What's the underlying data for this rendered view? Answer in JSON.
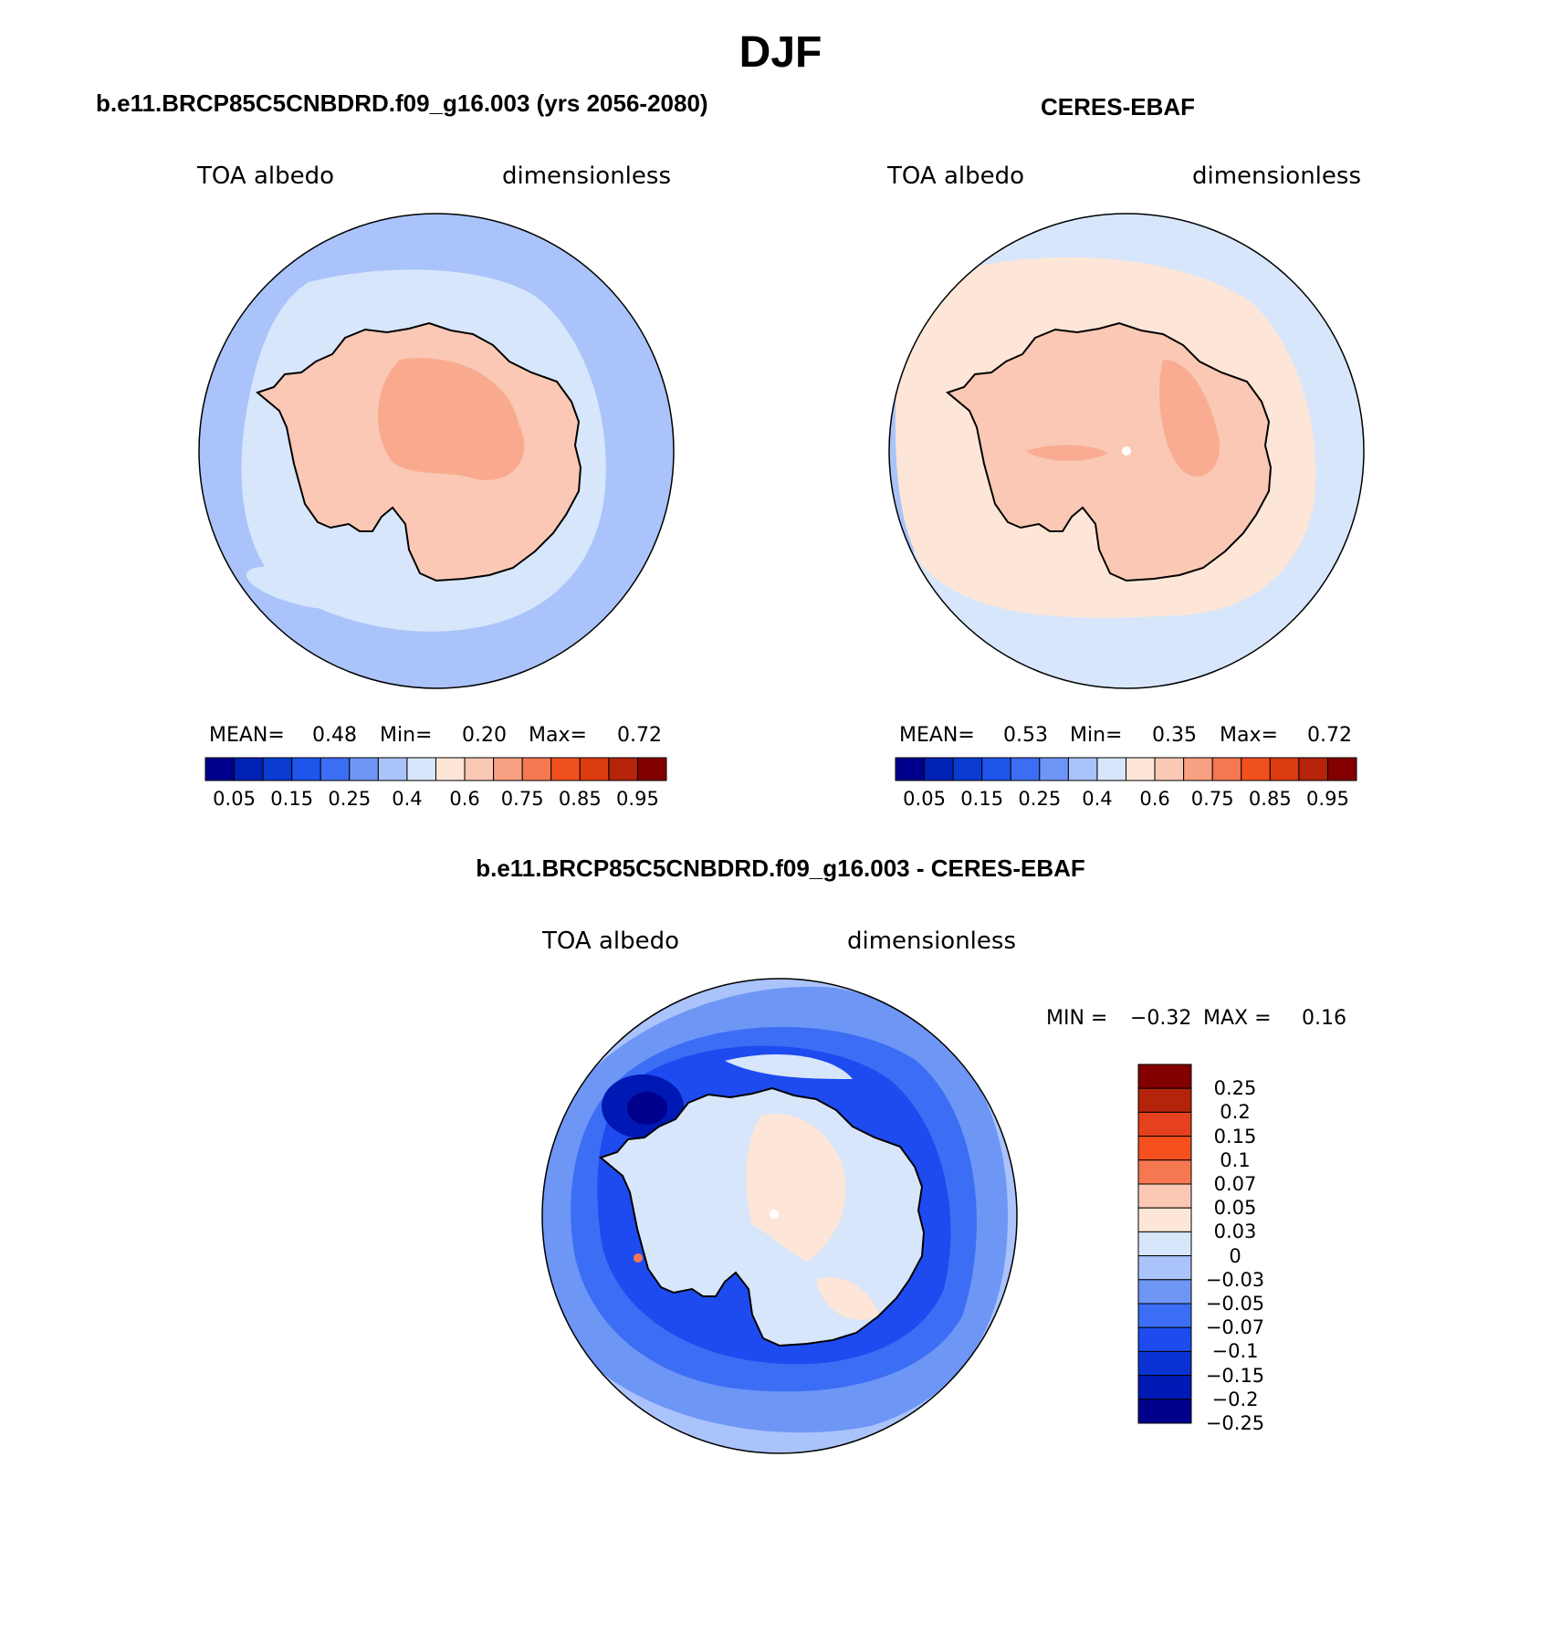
{
  "title": "DJF",
  "panels": [
    {
      "id": "model",
      "title": "b.e11.BRCP85C5CNBDRD.f09_g16.003 (yrs 2056-2080)",
      "left_label": "TOA albedo",
      "right_label": "dimensionless",
      "stats": {
        "mean_label": "MEAN=",
        "mean": "0.48",
        "min_label": "Min=",
        "min": "0.20",
        "max_label": "Max=",
        "max": "0.72"
      }
    },
    {
      "id": "obs",
      "title": "CERES-EBAF",
      "left_label": "TOA albedo",
      "right_label": "dimensionless",
      "stats": {
        "mean_label": "MEAN=",
        "mean": "0.53",
        "min_label": "Min=",
        "min": "0.35",
        "max_label": "Max=",
        "max": "0.72"
      }
    },
    {
      "id": "diff",
      "title": "b.e11.BRCP85C5CNBDRD.f09_g16.003 - CERES-EBAF",
      "left_label": "TOA albedo",
      "right_label": "dimensionless",
      "stats": {
        "min_label": "MIN =",
        "min": "−0.32",
        "max_label": "MAX =",
        "max": "0.16"
      }
    }
  ],
  "colorbar_main": {
    "colors": [
      "#00008c",
      "#0022b4",
      "#0a3cd2",
      "#1e55eb",
      "#3c6ef5",
      "#6e96f5",
      "#aac3fa",
      "#d7e6fa",
      "#fde6d7",
      "#fac8b4",
      "#f8a082",
      "#f57850",
      "#f0501e",
      "#dc3c0f",
      "#b4230a",
      "#820000"
    ],
    "tick_labels": [
      "0.05",
      "0.15",
      "0.25",
      "0.4",
      "0.6",
      "0.75",
      "0.85",
      "0.95"
    ]
  },
  "colorbar_diff": {
    "colors": [
      "#820000",
      "#b4230a",
      "#e6411e",
      "#f5501e",
      "#f57850",
      "#fac8b4",
      "#fde6d7",
      "#d7e6fa",
      "#aac3fa",
      "#6e96f5",
      "#3c6ef5",
      "#1e4bf0",
      "#0a32d2",
      "#0019b4",
      "#00008c"
    ],
    "tick_labels": [
      "0.25",
      "0.2",
      "0.15",
      "0.1",
      "0.07",
      "0.05",
      "0.03",
      "0",
      "−0.03",
      "−0.05",
      "−0.07",
      "−0.1",
      "−0.15",
      "−0.2",
      "−0.25"
    ]
  }
}
